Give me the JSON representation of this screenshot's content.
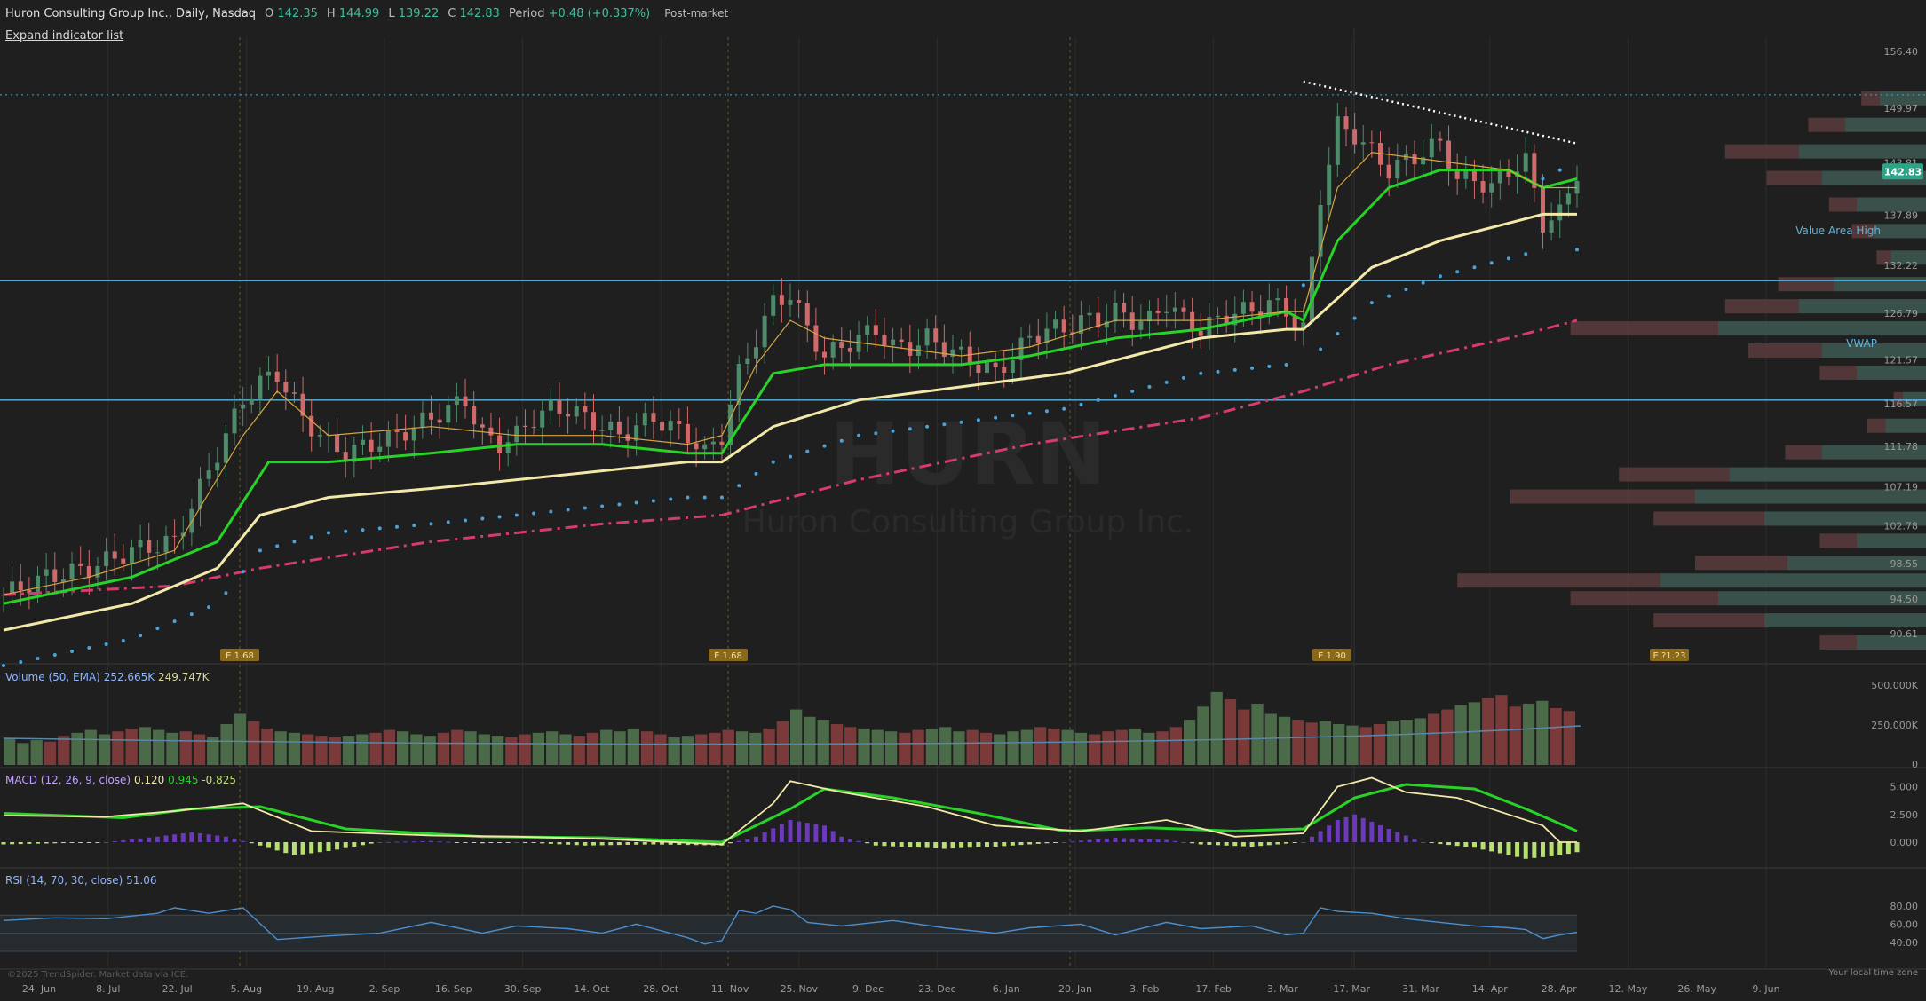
{
  "header": {
    "title": "Huron Consulting Group Inc., Daily, Nasdaq",
    "o_label": "O",
    "o": "142.35",
    "h_label": "H",
    "h": "144.99",
    "l_label": "L",
    "l": "139.22",
    "c_label": "C",
    "c": "142.83",
    "period_label": "Period",
    "period": "+0.48 (+0.337%)",
    "session": "Post-market"
  },
  "expand_link": "Expand indicator list",
  "watermark": {
    "ticker": "HURN",
    "name": "Huron Consulting Group Inc."
  },
  "copyright": "©2025 TrendSpider. Market data via ICE.",
  "time_zone": "Your local time zone",
  "colors": {
    "background": "#1f1f1f",
    "up": "#4f8a6a",
    "down": "#d06a6a",
    "ema_fast": "#d9a441",
    "ema_mid": "#28d228",
    "ema_slow": "#f2e9a9",
    "vwap": "#d63b6e",
    "psar": "#4aa3d8",
    "level_line": "#5fb3dc",
    "price_tag": "#2aa588"
  },
  "annotations": {
    "value_area_high": "Value Area High",
    "vwap_label": "VWAP",
    "current_price": "142.83"
  },
  "earnings_markers": [
    {
      "date": "2024-07-30",
      "label": "E 1.68"
    },
    {
      "date": "2024-10-29",
      "label": "E 1.68"
    },
    {
      "date": "2025-02-25",
      "label": "E 1.90"
    },
    {
      "date": "2025-04-29",
      "label": "E ?1.23"
    }
  ],
  "panes": {
    "volume": {
      "title": "Volume (50, EMA)",
      "v1": "252.665K",
      "v2": "249.747K",
      "ticks": [
        "500.000K",
        "250.000K",
        "0"
      ]
    },
    "macd": {
      "title": "MACD (12, 26, 9, close)",
      "v1": "0.120",
      "v2": "0.945",
      "v3": "-0.825",
      "ticks": [
        "5.000",
        "2.500",
        "0.000"
      ]
    },
    "rsi": {
      "title": "RSI (14, 70, 30, close)",
      "v1": "51.06",
      "ticks": [
        "80.00",
        "60.00",
        "40.00"
      ]
    }
  },
  "chart_data": {
    "type": "candlestick",
    "symbol": "HURN",
    "interval": "Daily",
    "ylim": [
      88,
      158
    ],
    "y_ticks": [
      "156.40",
      "149.97",
      "143.81",
      "137.89",
      "132.22",
      "126.79",
      "121.57",
      "116.57",
      "111.78",
      "107.19",
      "102.78",
      "98.55",
      "94.50",
      "90.61"
    ],
    "x_ticks": [
      "24. Jun",
      "8. Jul",
      "22. Jul",
      "5. Aug",
      "19. Aug",
      "2. Sep",
      "16. Sep",
      "30. Sep",
      "14. Oct",
      "28. Oct",
      "11. Nov",
      "25. Nov",
      "9. Dec",
      "23. Dec",
      "6. Jan",
      "20. Jan",
      "3. Feb",
      "17. Feb",
      "3. Mar",
      "17. Mar",
      "31. Mar",
      "14. Apr",
      "28. Apr",
      "12. May",
      "26. May",
      "9. Jun"
    ],
    "levels": {
      "value_area_high": 130.5,
      "vwap_line": 117.0,
      "dotted_top": 151.5
    },
    "close_path": [
      [
        0,
        95
      ],
      [
        5,
        97
      ],
      [
        10,
        98
      ],
      [
        15,
        100
      ],
      [
        20,
        101
      ],
      [
        25,
        111
      ],
      [
        28,
        117
      ],
      [
        30,
        119
      ],
      [
        32,
        120
      ],
      [
        35,
        115
      ],
      [
        38,
        112
      ],
      [
        40,
        111
      ],
      [
        43,
        112
      ],
      [
        46,
        113
      ],
      [
        48,
        114
      ],
      [
        50,
        115
      ],
      [
        52,
        116
      ],
      [
        54,
        117
      ],
      [
        56,
        113
      ],
      [
        58,
        112
      ],
      [
        60,
        113
      ],
      [
        62,
        115
      ],
      [
        64,
        116
      ],
      [
        66,
        116
      ],
      [
        68,
        115
      ],
      [
        70,
        114
      ],
      [
        72,
        113
      ],
      [
        74,
        114
      ],
      [
        76,
        115
      ],
      [
        78,
        114
      ],
      [
        80,
        113
      ],
      [
        82,
        111
      ],
      [
        84,
        113
      ],
      [
        86,
        120
      ],
      [
        88,
        124
      ],
      [
        90,
        128
      ],
      [
        92,
        129
      ],
      [
        94,
        125
      ],
      [
        96,
        122
      ],
      [
        98,
        123
      ],
      [
        100,
        124
      ],
      [
        102,
        125
      ],
      [
        104,
        123
      ],
      [
        106,
        123
      ],
      [
        108,
        124
      ],
      [
        110,
        123
      ],
      [
        112,
        122
      ],
      [
        114,
        121
      ],
      [
        116,
        120
      ],
      [
        118,
        122
      ],
      [
        120,
        124
      ],
      [
        122,
        125
      ],
      [
        124,
        125
      ],
      [
        126,
        126
      ],
      [
        128,
        126
      ],
      [
        130,
        127
      ],
      [
        132,
        126
      ],
      [
        134,
        126
      ],
      [
        136,
        128
      ],
      [
        138,
        126
      ],
      [
        140,
        125
      ],
      [
        142,
        126
      ],
      [
        144,
        127
      ],
      [
        146,
        127
      ],
      [
        148,
        128
      ],
      [
        150,
        127
      ],
      [
        152,
        125
      ],
      [
        154,
        140
      ],
      [
        156,
        148
      ],
      [
        158,
        147
      ],
      [
        160,
        145
      ],
      [
        162,
        143
      ],
      [
        164,
        144
      ],
      [
        166,
        145
      ],
      [
        168,
        146
      ],
      [
        170,
        142
      ],
      [
        172,
        142
      ],
      [
        174,
        141
      ],
      [
        176,
        143
      ],
      [
        178,
        144
      ],
      [
        180,
        137
      ],
      [
        182,
        138
      ],
      [
        184,
        142.83
      ]
    ],
    "ema_fast": [
      [
        0,
        95
      ],
      [
        10,
        97
      ],
      [
        20,
        100
      ],
      [
        28,
        113
      ],
      [
        32,
        118
      ],
      [
        38,
        113
      ],
      [
        50,
        114
      ],
      [
        60,
        113
      ],
      [
        70,
        113
      ],
      [
        80,
        112
      ],
      [
        84,
        113
      ],
      [
        88,
        121
      ],
      [
        92,
        126
      ],
      [
        96,
        124
      ],
      [
        104,
        123
      ],
      [
        112,
        122
      ],
      [
        120,
        123
      ],
      [
        130,
        126
      ],
      [
        140,
        126
      ],
      [
        150,
        127
      ],
      [
        152,
        127
      ],
      [
        156,
        141
      ],
      [
        160,
        145
      ],
      [
        168,
        144
      ],
      [
        176,
        143
      ],
      [
        180,
        141
      ],
      [
        184,
        141
      ]
    ],
    "ema_mid": [
      [
        0,
        94
      ],
      [
        15,
        97
      ],
      [
        25,
        101
      ],
      [
        31,
        110
      ],
      [
        38,
        110
      ],
      [
        50,
        111
      ],
      [
        60,
        112
      ],
      [
        70,
        112
      ],
      [
        80,
        111
      ],
      [
        84,
        111
      ],
      [
        90,
        120
      ],
      [
        96,
        121
      ],
      [
        104,
        121
      ],
      [
        112,
        121
      ],
      [
        120,
        122
      ],
      [
        130,
        124
      ],
      [
        140,
        125
      ],
      [
        150,
        127
      ],
      [
        152,
        126
      ],
      [
        156,
        135
      ],
      [
        162,
        141
      ],
      [
        168,
        143
      ],
      [
        176,
        143
      ],
      [
        180,
        141
      ],
      [
        184,
        142
      ]
    ],
    "ema_slow": [
      [
        0,
        91
      ],
      [
        15,
        94
      ],
      [
        25,
        98
      ],
      [
        30,
        104
      ],
      [
        38,
        106
      ],
      [
        50,
        107
      ],
      [
        60,
        108
      ],
      [
        70,
        109
      ],
      [
        80,
        110
      ],
      [
        84,
        110
      ],
      [
        90,
        114
      ],
      [
        100,
        117
      ],
      [
        108,
        118
      ],
      [
        116,
        119
      ],
      [
        124,
        120
      ],
      [
        132,
        122
      ],
      [
        140,
        124
      ],
      [
        150,
        125
      ],
      [
        152,
        125
      ],
      [
        160,
        132
      ],
      [
        168,
        135
      ],
      [
        176,
        137
      ],
      [
        180,
        138
      ],
      [
        184,
        138
      ]
    ],
    "vwap_path": [
      [
        0,
        95
      ],
      [
        20,
        96
      ],
      [
        30,
        98
      ],
      [
        50,
        101
      ],
      [
        70,
        103
      ],
      [
        84,
        104
      ],
      [
        100,
        108
      ],
      [
        120,
        112
      ],
      [
        140,
        115
      ],
      [
        152,
        118
      ],
      [
        162,
        121
      ],
      [
        176,
        124
      ],
      [
        184,
        126
      ]
    ],
    "trendline": [
      [
        152,
        153
      ],
      [
        184,
        146
      ]
    ],
    "volume": [
      180,
      150,
      170,
      160,
      200,
      220,
      240,
      210,
      230,
      250,
      260,
      240,
      220,
      230,
      210,
      190,
      280,
      350,
      300,
      250,
      230,
      220,
      210,
      200,
      190,
      200,
      210,
      220,
      240,
      230,
      210,
      200,
      220,
      240,
      230,
      210,
      200,
      190,
      210,
      220,
      230,
      210,
      200,
      220,
      240,
      230,
      250,
      230,
      210,
      190,
      200,
      210,
      220,
      240,
      230,
      220,
      250,
      300,
      380,
      330,
      310,
      280,
      260,
      250,
      240,
      230,
      220,
      240,
      250,
      260,
      230,
      240,
      220,
      210,
      230,
      240,
      260,
      250,
      240,
      220,
      210,
      230,
      240,
      250,
      220,
      230,
      260,
      310,
      400,
      500,
      450,
      380,
      420,
      350,
      330,
      310,
      290,
      300,
      280,
      270,
      260,
      280,
      300,
      310,
      320,
      350,
      380,
      410,
      430,
      460,
      480,
      400,
      420,
      440,
      390,
      370
    ],
    "macd_line": [
      [
        0,
        2.4
      ],
      [
        12,
        2.3
      ],
      [
        20,
        2.8
      ],
      [
        28,
        3.5
      ],
      [
        36,
        1.0
      ],
      [
        50,
        0.6
      ],
      [
        60,
        0.5
      ],
      [
        70,
        0.3
      ],
      [
        84,
        -0.2
      ],
      [
        90,
        3.5
      ],
      [
        92,
        5.5
      ],
      [
        98,
        4.5
      ],
      [
        108,
        3.2
      ],
      [
        116,
        1.5
      ],
      [
        126,
        1.0
      ],
      [
        136,
        2.0
      ],
      [
        144,
        0.5
      ],
      [
        152,
        0.8
      ],
      [
        156,
        5.0
      ],
      [
        160,
        5.8
      ],
      [
        164,
        4.5
      ],
      [
        170,
        4.0
      ],
      [
        176,
        2.5
      ],
      [
        180,
        1.5
      ],
      [
        182,
        0.0
      ],
      [
        184,
        0.0
      ]
    ],
    "macd_signal": [
      [
        0,
        2.6
      ],
      [
        14,
        2.2
      ],
      [
        22,
        3.0
      ],
      [
        30,
        3.2
      ],
      [
        40,
        1.2
      ],
      [
        56,
        0.5
      ],
      [
        70,
        0.4
      ],
      [
        84,
        0.0
      ],
      [
        92,
        3.0
      ],
      [
        96,
        4.8
      ],
      [
        104,
        4.0
      ],
      [
        114,
        2.6
      ],
      [
        124,
        1.0
      ],
      [
        134,
        1.3
      ],
      [
        144,
        1.0
      ],
      [
        152,
        1.2
      ],
      [
        158,
        4.0
      ],
      [
        164,
        5.2
      ],
      [
        172,
        4.8
      ],
      [
        178,
        3.0
      ],
      [
        184,
        1.0
      ]
    ],
    "macd_hist": [
      [
        0,
        -0.2
      ],
      [
        6,
        -0.1
      ],
      [
        12,
        0.0
      ],
      [
        18,
        0.5
      ],
      [
        22,
        0.9
      ],
      [
        26,
        0.5
      ],
      [
        30,
        -0.3
      ],
      [
        34,
        -1.2
      ],
      [
        38,
        -0.8
      ],
      [
        44,
        0.0
      ],
      [
        50,
        0.1
      ],
      [
        56,
        -0.1
      ],
      [
        60,
        0.0
      ],
      [
        68,
        -0.3
      ],
      [
        76,
        -0.2
      ],
      [
        84,
        -0.3
      ],
      [
        88,
        0.5
      ],
      [
        92,
        2.0
      ],
      [
        96,
        1.5
      ],
      [
        98,
        0.5
      ],
      [
        102,
        -0.3
      ],
      [
        110,
        -0.6
      ],
      [
        116,
        -0.4
      ],
      [
        124,
        0.0
      ],
      [
        130,
        0.4
      ],
      [
        136,
        0.2
      ],
      [
        140,
        -0.2
      ],
      [
        146,
        -0.4
      ],
      [
        152,
        0.0
      ],
      [
        156,
        2.0
      ],
      [
        158,
        2.5
      ],
      [
        162,
        1.2
      ],
      [
        166,
        0.0
      ],
      [
        172,
        -0.5
      ],
      [
        178,
        -1.5
      ],
      [
        182,
        -1.2
      ],
      [
        184,
        -0.9
      ]
    ],
    "rsi": [
      [
        0,
        64
      ],
      [
        6,
        67
      ],
      [
        12,
        66
      ],
      [
        18,
        72
      ],
      [
        20,
        78
      ],
      [
        24,
        72
      ],
      [
        28,
        78
      ],
      [
        32,
        43
      ],
      [
        38,
        47
      ],
      [
        44,
        50
      ],
      [
        50,
        62
      ],
      [
        56,
        50
      ],
      [
        60,
        58
      ],
      [
        66,
        55
      ],
      [
        70,
        50
      ],
      [
        74,
        60
      ],
      [
        80,
        45
      ],
      [
        82,
        38
      ],
      [
        84,
        42
      ],
      [
        86,
        75
      ],
      [
        88,
        72
      ],
      [
        90,
        80
      ],
      [
        92,
        76
      ],
      [
        94,
        62
      ],
      [
        98,
        58
      ],
      [
        104,
        64
      ],
      [
        110,
        56
      ],
      [
        116,
        50
      ],
      [
        120,
        56
      ],
      [
        126,
        60
      ],
      [
        130,
        48
      ],
      [
        136,
        62
      ],
      [
        140,
        55
      ],
      [
        146,
        58
      ],
      [
        150,
        48
      ],
      [
        152,
        50
      ],
      [
        154,
        78
      ],
      [
        156,
        74
      ],
      [
        160,
        72
      ],
      [
        164,
        66
      ],
      [
        168,
        62
      ],
      [
        172,
        58
      ],
      [
        176,
        56
      ],
      [
        178,
        54
      ],
      [
        180,
        44
      ],
      [
        182,
        48
      ],
      [
        184,
        51
      ]
    ],
    "rsi_levels": [
      70,
      50,
      30
    ],
    "volume_profile": [
      {
        "price": 151.0,
        "up": 40,
        "down": 10
      },
      {
        "price": 148.0,
        "up": 70,
        "down": 20
      },
      {
        "price": 145.0,
        "up": 110,
        "down": 40
      },
      {
        "price": 142.0,
        "up": 90,
        "down": 30
      },
      {
        "price": 139.0,
        "up": 60,
        "down": 15
      },
      {
        "price": 136.0,
        "up": 45,
        "down": 12
      },
      {
        "price": 133.0,
        "up": 30,
        "down": 8
      },
      {
        "price": 130.0,
        "up": 80,
        "down": 30
      },
      {
        "price": 127.5,
        "up": 110,
        "down": 40
      },
      {
        "price": 125.0,
        "up": 180,
        "down": 80
      },
      {
        "price": 122.5,
        "up": 90,
        "down": 40
      },
      {
        "price": 120.0,
        "up": 60,
        "down": 20
      },
      {
        "price": 117.0,
        "up": 20,
        "down": 5
      },
      {
        "price": 114.0,
        "up": 35,
        "down": 10
      },
      {
        "price": 111.0,
        "up": 90,
        "down": 20
      },
      {
        "price": 108.5,
        "up": 170,
        "down": 60
      },
      {
        "price": 106.0,
        "up": 200,
        "down": 100
      },
      {
        "price": 103.5,
        "up": 140,
        "down": 60
      },
      {
        "price": 101.0,
        "up": 60,
        "down": 20
      },
      {
        "price": 98.5,
        "up": 120,
        "down": 50
      },
      {
        "price": 96.5,
        "up": 230,
        "down": 110
      },
      {
        "price": 94.5,
        "up": 180,
        "down": 80
      },
      {
        "price": 92.0,
        "up": 140,
        "down": 60
      },
      {
        "price": 89.5,
        "up": 60,
        "down": 20
      }
    ]
  }
}
